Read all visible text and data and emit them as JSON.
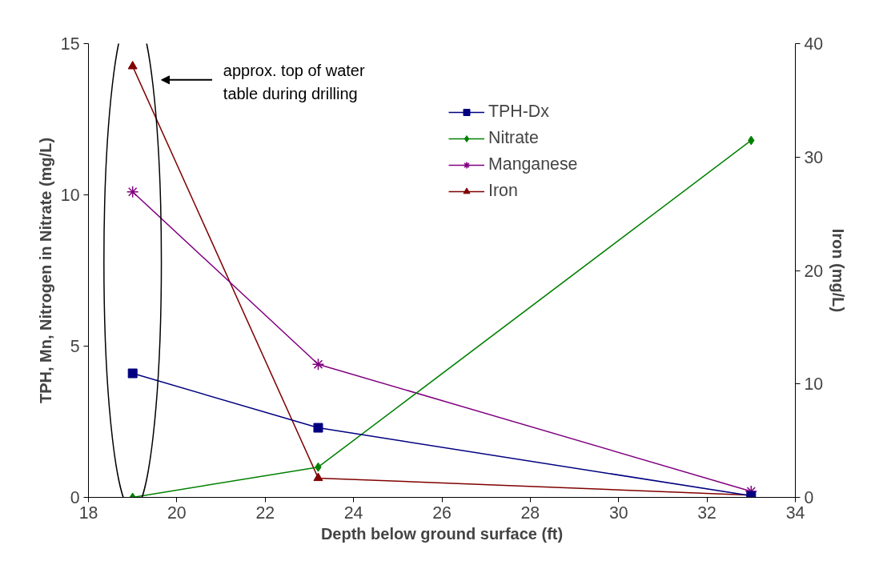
{
  "chart_data": {
    "type": "line",
    "xlabel": "Depth below ground surface (ft)",
    "ylabel": "TPH, Mn, Nitrogen in Nitrate (mg/L)",
    "y2label": "Iron (mg/L)",
    "x": [
      19,
      23.2,
      33
    ],
    "series": [
      {
        "name": "TPH-Dx",
        "color": "#000080",
        "marker": "square",
        "values": [
          4.1,
          2.3,
          0.05
        ]
      },
      {
        "name": "Nitrate",
        "color": "#008000",
        "marker": "diamond",
        "values": [
          0,
          1.0,
          11.8
        ]
      },
      {
        "name": "Manganese",
        "color": "#800080",
        "marker": "cross",
        "values": [
          10.1,
          4.4,
          0.2
        ]
      },
      {
        "name": "Iron",
        "color": "#800000",
        "marker": "triangle",
        "axis": "y2",
        "values": [
          38,
          1.7,
          0.2
        ]
      }
    ],
    "xlim": [
      18,
      34
    ],
    "xticks": [
      18,
      20,
      22,
      24,
      26,
      28,
      30,
      32,
      34
    ],
    "ylim": [
      0,
      15
    ],
    "yticks": [
      0,
      5,
      10,
      15
    ],
    "y2lim": [
      0,
      40
    ],
    "y2ticks": [
      0,
      10,
      20,
      30,
      40
    ],
    "grid": false,
    "legend": "top right",
    "annotations": [
      "approx. top of water\ntable during drilling"
    ]
  }
}
